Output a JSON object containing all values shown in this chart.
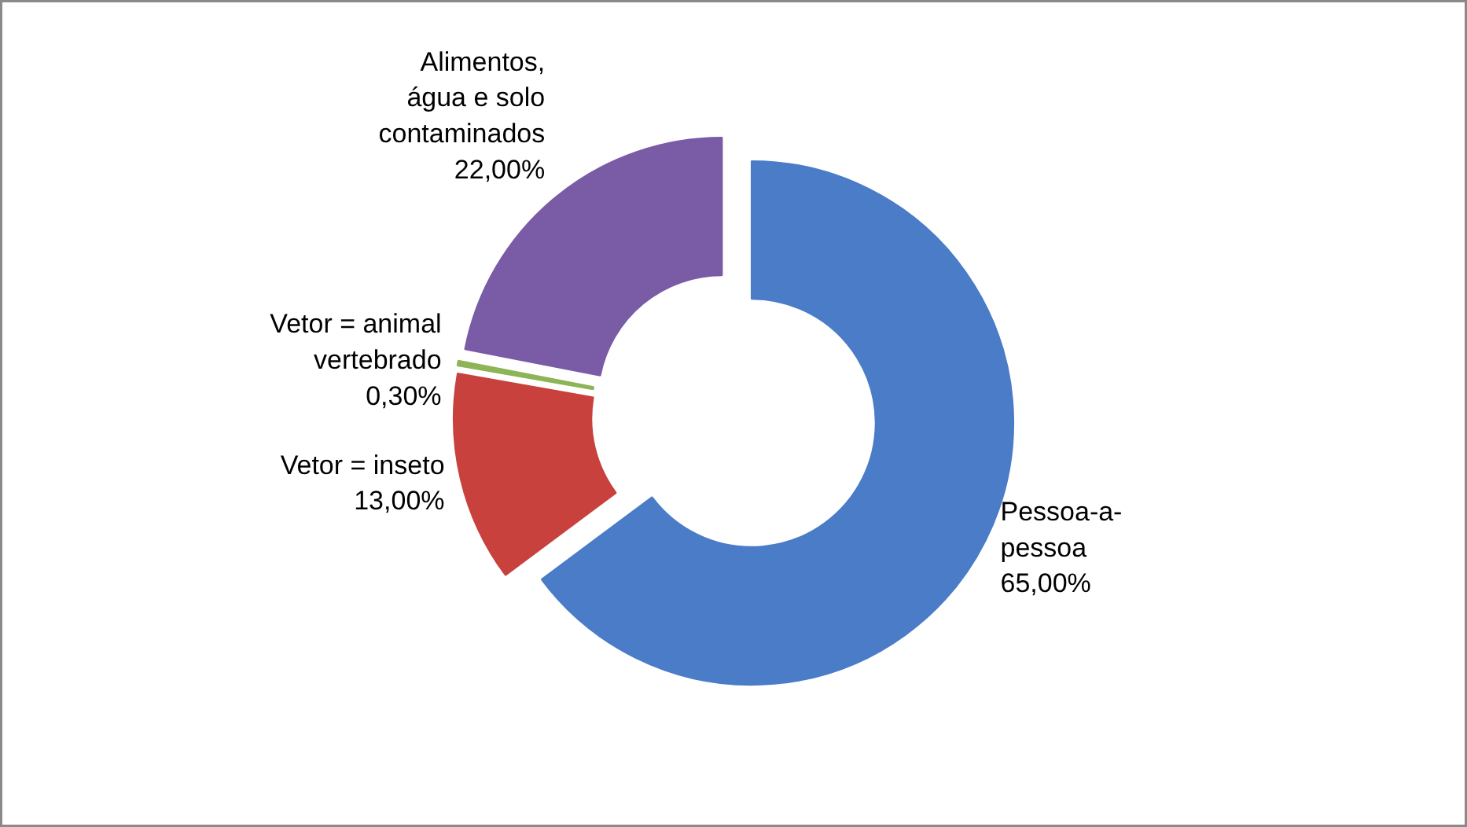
{
  "chart_data": {
    "type": "donut",
    "categories": [
      "Pessoa-a-pessoa",
      "Vetor = inseto",
      "Vetor = animal vertebrado",
      "Alimentos, água e solo contaminados"
    ],
    "values": [
      65,
      13,
      0.3,
      22
    ],
    "colors": [
      "#4a7cc8",
      "#c8413d",
      "#8db456",
      "#7a5ba6"
    ],
    "value_labels": [
      "65,00%",
      "13,00%",
      "0,30%",
      "22,00%"
    ]
  }
}
